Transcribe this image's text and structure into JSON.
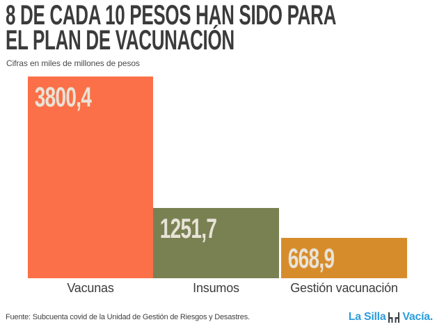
{
  "header": {
    "title_line1": "8 DE CADA 10 PESOS HAN SIDO PARA",
    "title_line2": "EL PLAN DE VACUNACIÓN",
    "subtitle": "Cifras en miles de millones de pesos"
  },
  "chart_data": {
    "type": "bar",
    "title": "8 DE CADA 10 PESOS HAN SIDO PARA EL PLAN DE VACUNACIÓN",
    "subtitle": "Cifras en miles de millones de pesos",
    "categories": [
      "Vacunas",
      "Insumos",
      "Gestión vacunación"
    ],
    "values": [
      3800.4,
      1251.7,
      668.9
    ],
    "value_labels": [
      "3800,4",
      "1251,7",
      "668,9"
    ],
    "bar_colors": [
      "#FB7048",
      "#798153",
      "#D78C2C"
    ],
    "value_label_color": "#E8E3D7",
    "value_label_position": "inside-top-left",
    "xlabel": "",
    "ylabel": "",
    "ylim": [
      0,
      3800.4
    ],
    "grid": false,
    "legend": "none",
    "orientation": "vertical"
  },
  "footer": {
    "source": "Fuente: Subcuenta covid de la Unidad de Gestión de Riesgos y Desastres.",
    "logo": {
      "part1": "La Silla",
      "part2": "Vacía.",
      "color": "#2D9CDB",
      "icon": "two-chairs-icon"
    }
  },
  "colors": {
    "background": "#FFFFFF",
    "title_text": "#3B3B3B",
    "subtitle_text": "#4A4A4A",
    "category_text": "#3B3B3B",
    "source_text": "#3F3F3F"
  }
}
